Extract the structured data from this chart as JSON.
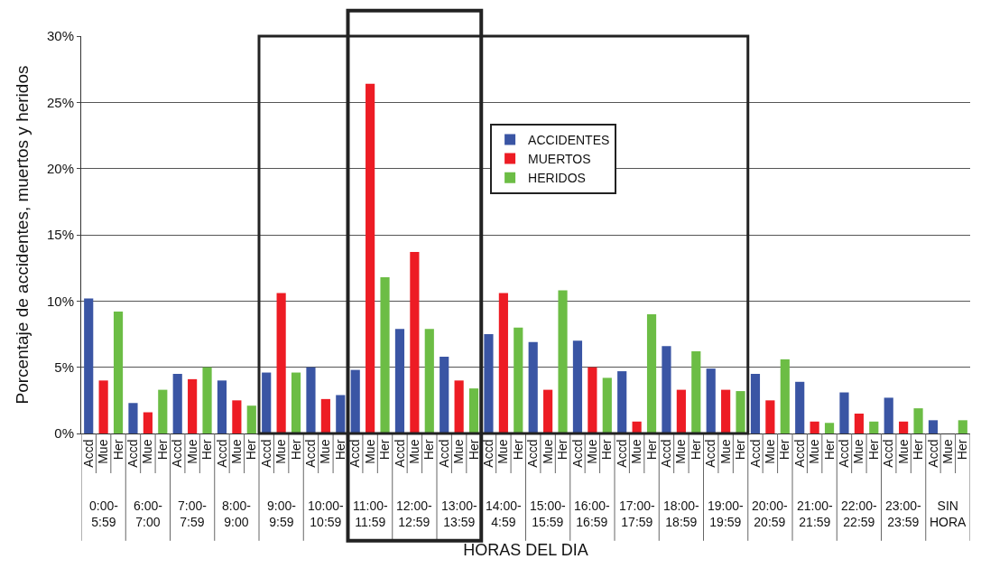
{
  "chart_data": {
    "type": "bar",
    "ylabel": "Porcentaje de accidentes, muertos y heridos",
    "xlabel": "HORAS DEL DIA",
    "categories": [
      "Accd",
      "Mue",
      "Her",
      "Accd",
      "Mue",
      "Her",
      "Accd",
      "Mue",
      "Her",
      "Accd",
      "Mue",
      "Her",
      "Accd",
      "Mue",
      "Her",
      "Accd",
      "Mue",
      "Her",
      "Accd",
      "Mue",
      "Her",
      "Accd",
      "Mue",
      "Her",
      "Accd",
      "Mue",
      "Her",
      "Accd",
      "Mue",
      "Her",
      "Accd",
      "Mue",
      "Her",
      "Accd",
      "Mue",
      "Her",
      "Accd",
      "Mue",
      "Her",
      "Accd",
      "Mue",
      "Her",
      "Accd",
      "Mue",
      "Her",
      "Accd",
      "Mue",
      "Her",
      "Accd",
      "Mue",
      "Her",
      "Accd",
      "Mue",
      "Her",
      "Accd",
      "Mue",
      "Her",
      "Accd",
      "Mue",
      "Her"
    ],
    "series": [
      {
        "name": "ACCIDENTES",
        "color": "#3a55a4",
        "values": [
          10.2,
          null,
          null,
          2.3,
          null,
          null,
          4.5,
          null,
          null,
          4.0,
          null,
          null,
          4.6,
          null,
          null,
          5.0,
          null,
          2.9,
          4.8,
          null,
          null,
          7.9,
          null,
          null,
          5.8,
          null,
          null,
          7.5,
          null,
          null,
          6.9,
          null,
          null,
          7.0,
          null,
          null,
          4.7,
          null,
          null,
          6.6,
          null,
          null,
          4.9,
          null,
          null,
          4.5,
          null,
          null,
          3.9,
          null,
          null,
          3.1,
          null,
          null,
          2.7,
          null,
          null,
          1.0,
          null,
          null
        ]
      },
      {
        "name": "MUERTOS",
        "color": "#ed1c24",
        "values": [
          null,
          4.0,
          null,
          null,
          1.6,
          null,
          null,
          4.1,
          null,
          null,
          2.5,
          null,
          null,
          10.6,
          null,
          null,
          2.6,
          null,
          null,
          26.4,
          null,
          null,
          13.7,
          null,
          null,
          4.0,
          null,
          null,
          10.6,
          null,
          null,
          3.3,
          null,
          null,
          5.0,
          null,
          null,
          0.9,
          null,
          null,
          3.3,
          null,
          null,
          3.3,
          null,
          null,
          2.5,
          null,
          null,
          0.9,
          null,
          null,
          1.5,
          null,
          null,
          0.9,
          null,
          null,
          null,
          null
        ]
      },
      {
        "name": "HERIDOS",
        "color": "#6cbd45",
        "values": [
          null,
          null,
          9.2,
          null,
          null,
          3.3,
          null,
          null,
          5.0,
          null,
          null,
          2.1,
          null,
          null,
          4.6,
          null,
          null,
          null,
          null,
          null,
          11.8,
          null,
          null,
          7.9,
          null,
          null,
          3.4,
          null,
          null,
          8.0,
          null,
          null,
          10.8,
          null,
          null,
          4.2,
          null,
          null,
          9.0,
          null,
          null,
          6.2,
          null,
          null,
          3.2,
          null,
          null,
          5.6,
          null,
          null,
          0.8,
          null,
          null,
          0.9,
          null,
          null,
          1.9,
          null,
          null,
          1.0
        ]
      }
    ],
    "annotations": [
      "0:00-\n5:59",
      "6:00-\n7:00",
      "7:00-\n7:59",
      "8:00-\n9:00",
      "9:00-\n9:59",
      "10:00-\n10:59",
      "11:00-\n11:59",
      "12:00-\n12:59",
      "13:00-\n13:59",
      "14:00-\n4:59",
      "15:00-\n15:59",
      "16:00-\n16:59",
      "17:00-\n17:59",
      "18:00-\n18:59",
      "19:00-\n19:59",
      "20:00-\n20:59",
      "21:00-\n21:59",
      "22:00-\n22:59",
      "23:00-\n23:59",
      "SIN\nHORA"
    ],
    "ylim": [
      0,
      30
    ],
    "yticks": [
      {
        "value": 0,
        "label": "0%"
      },
      {
        "value": 5,
        "label": "5%"
      },
      {
        "value": 10,
        "label": "10%"
      },
      {
        "value": 15,
        "label": "15%"
      },
      {
        "value": 20,
        "label": "20%"
      },
      {
        "value": 25,
        "label": "25%"
      },
      {
        "value": 30,
        "label": "30%"
      }
    ],
    "grid": "y",
    "legend": "top"
  }
}
